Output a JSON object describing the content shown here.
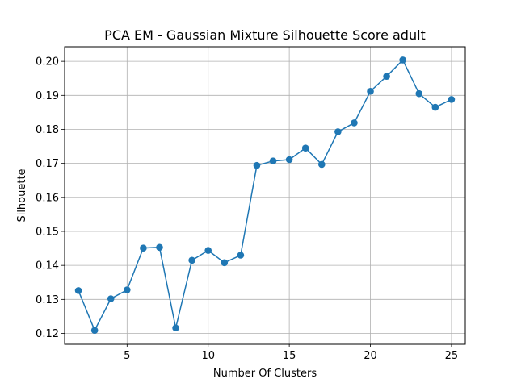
{
  "chart_data": {
    "type": "line",
    "title": "PCA EM - Gaussian Mixture Silhouette Score adult",
    "xlabel": "Number Of Clusters",
    "ylabel": "Silhouette",
    "xlim": [
      1.15,
      25.85
    ],
    "ylim": [
      0.1168,
      0.2043
    ],
    "xticks": [
      5,
      10,
      15,
      20,
      25
    ],
    "yticks": [
      0.12,
      0.13,
      0.14,
      0.15,
      0.16,
      0.17,
      0.18,
      0.19,
      0.2
    ],
    "ytick_labels": [
      "0.12",
      "0.13",
      "0.14",
      "0.15",
      "0.16",
      "0.17",
      "0.18",
      "0.19",
      "0.20"
    ],
    "grid": true,
    "series_color": "#1f77b4",
    "marker": "circle",
    "x": [
      2,
      3,
      4,
      5,
      6,
      7,
      8,
      9,
      10,
      11,
      12,
      13,
      14,
      15,
      16,
      17,
      18,
      19,
      20,
      21,
      22,
      23,
      24,
      25
    ],
    "y": [
      0.1326,
      0.1209,
      0.1302,
      0.1328,
      0.1451,
      0.1453,
      0.1216,
      0.1415,
      0.1444,
      0.1408,
      0.143,
      0.1694,
      0.1707,
      0.1711,
      0.1745,
      0.1697,
      0.1793,
      0.1819,
      0.1912,
      0.1956,
      0.2004,
      0.1905,
      0.1865,
      0.1888
    ]
  }
}
